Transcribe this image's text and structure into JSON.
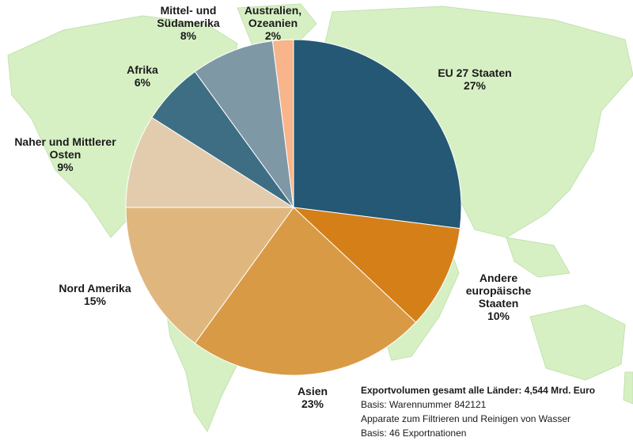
{
  "chart_data": {
    "type": "pie",
    "title": "",
    "slices": [
      {
        "label_lines": [
          "EU 27 Staaten"
        ],
        "value_label": "27%",
        "value": 27,
        "color": "#245874"
      },
      {
        "label_lines": [
          "Andere",
          "europäische",
          "Staaten"
        ],
        "value_label": "10%",
        "value": 10,
        "color": "#d57f19"
      },
      {
        "label_lines": [
          "Asien"
        ],
        "value_label": "23%",
        "value": 23,
        "color": "#d99a45"
      },
      {
        "label_lines": [
          "Nord Amerika"
        ],
        "value_label": "15%",
        "value": 15,
        "color": "#dfb77e"
      },
      {
        "label_lines": [
          "Naher und Mittlerer",
          "Osten"
        ],
        "value_label": "9%",
        "value": 9,
        "color": "#e3ccad"
      },
      {
        "label_lines": [
          "Afrika"
        ],
        "value_label": "6%",
        "value": 6,
        "color": "#3e6e84"
      },
      {
        "label_lines": [
          "Mittel- und",
          "Südamerika"
        ],
        "value_label": "8%",
        "value": 8,
        "color": "#7f98a6"
      },
      {
        "label_lines": [
          "Australien,",
          "Ozeanien"
        ],
        "value_label": "2%",
        "value": 2,
        "color": "#f8b48a"
      }
    ],
    "background": "world map",
    "map_color": "#d6f0c4"
  },
  "notes": [
    "Exportvolumen gesamt alle Länder: 4,544 Mrd. Euro",
    "Basis: Warennummer 842121",
    "Apparate zum Filtrieren und Reinigen von Wasser",
    "Basis: 46 Exportnationen"
  ]
}
